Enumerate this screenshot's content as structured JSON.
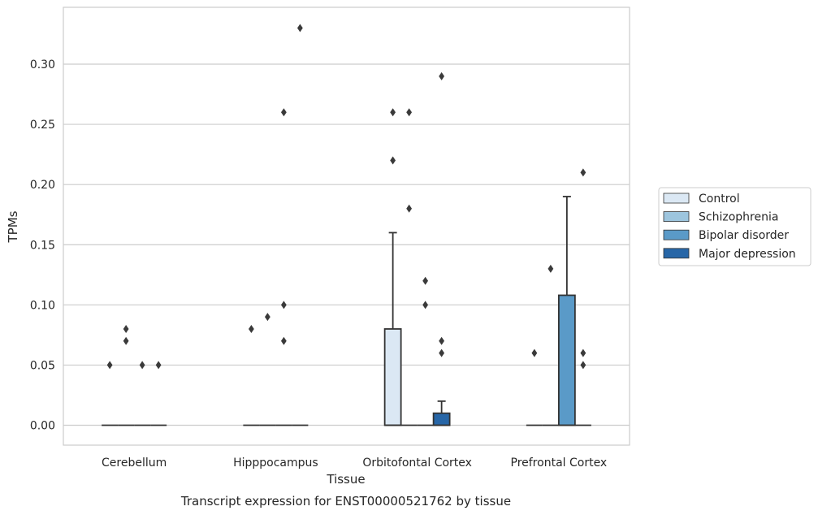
{
  "caption": "Transcript expression for ENST00000521762 by tissue",
  "chart_data": {
    "type": "box",
    "xlabel": "Tissue",
    "ylabel": "TPMs",
    "ylim": [
      -0.016,
      0.347
    ],
    "yticks": [
      "0.00",
      "0.05",
      "0.10",
      "0.15",
      "0.20",
      "0.25",
      "0.30"
    ],
    "ytick_values": [
      0,
      0.05,
      0.1,
      0.15,
      0.2,
      0.25,
      0.3
    ],
    "grid": "horizontal",
    "legend_position": "right",
    "categories": [
      "Cerebellum",
      "Hipppocampus",
      "Orbitofontal Cortex",
      "Prefrontal Cortex"
    ],
    "series": [
      {
        "name": "Control",
        "color": "#dbe8f4",
        "boxes": [
          {
            "q1": 0,
            "median": 0,
            "q3": 0,
            "whisker_low": 0,
            "whisker_high": 0,
            "outliers": [
              0.05
            ]
          },
          {
            "q1": 0,
            "median": 0,
            "q3": 0,
            "whisker_low": 0,
            "whisker_high": 0,
            "outliers": [
              0.08
            ]
          },
          {
            "q1": 0,
            "median": 0,
            "q3": 0.08,
            "whisker_low": 0,
            "whisker_high": 0.16,
            "outliers": [
              0.26,
              0.22
            ]
          },
          {
            "q1": 0,
            "median": 0,
            "q3": 0,
            "whisker_low": 0,
            "whisker_high": 0,
            "outliers": [
              0.06
            ]
          }
        ]
      },
      {
        "name": "Schizophrenia",
        "color": "#9dc5de",
        "boxes": [
          {
            "q1": 0,
            "median": 0,
            "q3": 0,
            "whisker_low": 0,
            "whisker_high": 0,
            "outliers": [
              0.08,
              0.07
            ]
          },
          {
            "q1": 0,
            "median": 0,
            "q3": 0,
            "whisker_low": 0,
            "whisker_high": 0,
            "outliers": [
              0.09
            ]
          },
          {
            "q1": 0,
            "median": 0,
            "q3": 0,
            "whisker_low": 0,
            "whisker_high": 0,
            "outliers": [
              0.26,
              0.18
            ]
          },
          {
            "q1": 0,
            "median": 0,
            "q3": 0,
            "whisker_low": 0,
            "whisker_high": 0,
            "outliers": [
              0.13
            ]
          }
        ]
      },
      {
        "name": "Bipolar disorder",
        "color": "#5a9ac8",
        "boxes": [
          {
            "q1": 0,
            "median": 0,
            "q3": 0,
            "whisker_low": 0,
            "whisker_high": 0,
            "outliers": [
              0.05
            ]
          },
          {
            "q1": 0,
            "median": 0,
            "q3": 0,
            "whisker_low": 0,
            "whisker_high": 0,
            "outliers": [
              0.26,
              0.1,
              0.07
            ]
          },
          {
            "q1": 0,
            "median": 0,
            "q3": 0,
            "whisker_low": 0,
            "whisker_high": 0,
            "outliers": [
              0.12,
              0.1
            ]
          },
          {
            "q1": 0,
            "median": 0,
            "q3": 0.108,
            "whisker_low": 0,
            "whisker_high": 0.19,
            "outliers": []
          }
        ]
      },
      {
        "name": "Major depression",
        "color": "#2766a7",
        "boxes": [
          {
            "q1": 0,
            "median": 0,
            "q3": 0,
            "whisker_low": 0,
            "whisker_high": 0,
            "outliers": [
              0.05
            ]
          },
          {
            "q1": 0,
            "median": 0,
            "q3": 0,
            "whisker_low": 0,
            "whisker_high": 0,
            "outliers": [
              0.33
            ]
          },
          {
            "q1": 0,
            "median": 0,
            "q3": 0.01,
            "whisker_low": 0,
            "whisker_high": 0.02,
            "outliers": [
              0.29,
              0.07,
              0.06
            ]
          },
          {
            "q1": 0,
            "median": 0,
            "q3": 0,
            "whisker_low": 0,
            "whisker_high": 0,
            "outliers": [
              0.21,
              0.06,
              0.05
            ]
          }
        ]
      }
    ]
  }
}
